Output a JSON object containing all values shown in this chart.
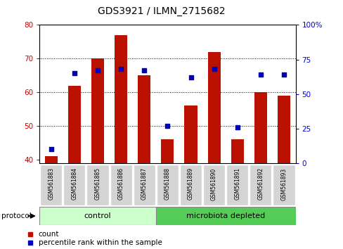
{
  "title": "GDS3921 / ILMN_2715682",
  "samples": [
    "GSM561883",
    "GSM561884",
    "GSM561885",
    "GSM561886",
    "GSM561887",
    "GSM561888",
    "GSM561889",
    "GSM561890",
    "GSM561891",
    "GSM561892",
    "GSM561893"
  ],
  "counts": [
    41,
    62,
    70,
    77,
    65,
    46,
    56,
    72,
    46,
    60,
    59
  ],
  "percentile_ranks": [
    10,
    65,
    67,
    68,
    67,
    27,
    62,
    68,
    26,
    64,
    64
  ],
  "bar_color": "#bb1100",
  "dot_color": "#0000bb",
  "ylim_left": [
    39,
    80
  ],
  "ylim_right": [
    0,
    100
  ],
  "yticks_left": [
    40,
    50,
    60,
    70,
    80
  ],
  "yticks_right": [
    0,
    25,
    50,
    75,
    100
  ],
  "ytick_right_labels": [
    "0",
    "25",
    "50",
    "75",
    "100%"
  ],
  "grid_lines": [
    50,
    60,
    70
  ],
  "groups": [
    {
      "label": "control",
      "start": 0,
      "end": 4,
      "color": "#ccffcc"
    },
    {
      "label": "microbiota depleted",
      "start": 5,
      "end": 10,
      "color": "#55cc55"
    }
  ],
  "protocol_label": "protocol",
  "legend_count": "count",
  "legend_percentile": "percentile rank within the sample",
  "bar_bottom": 39,
  "bar_width": 0.55,
  "plot_facecolor": "#ffffff",
  "tick_label_color_left": "#cc0000",
  "tick_label_color_right": "#0000cc"
}
